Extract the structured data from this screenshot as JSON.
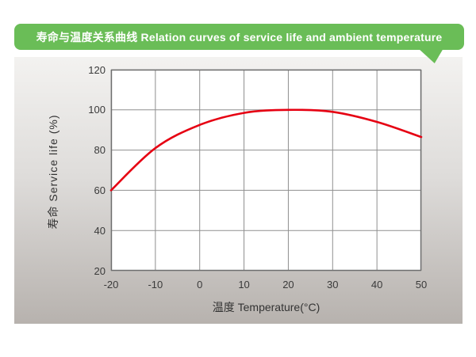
{
  "banner": {
    "title": "寿命与温度关系曲线 Relation curves of service life and ambient temperature"
  },
  "chart_data": {
    "type": "line",
    "title": "寿命与温度关系曲线 Relation curves of service life and ambient temperature",
    "x": [
      -20,
      -10,
      0,
      10,
      20,
      30,
      40,
      50
    ],
    "series": [
      {
        "name": "service-life-curve",
        "color": "#e60012",
        "values": [
          60,
          81,
          92.5,
          98.5,
          100,
          99,
          94,
          86.5
        ]
      }
    ],
    "xlabel": "温度 Temperature(°C)",
    "ylabel": "寿命 Service life (%)",
    "xlim": [
      -20,
      50
    ],
    "ylim": [
      20,
      120
    ],
    "x_ticks": [
      -20,
      -10,
      0,
      10,
      20,
      30,
      40,
      50
    ],
    "y_ticks": [
      20,
      40,
      60,
      80,
      100,
      120
    ],
    "grid": true,
    "legend": false
  },
  "colors": {
    "banner_green": "#6abd57",
    "curve_red": "#e60012",
    "grid_line": "#8f8f8f",
    "plot_border": "#6e6e6e",
    "plot_background": "#ffffff",
    "text": "#333333"
  }
}
